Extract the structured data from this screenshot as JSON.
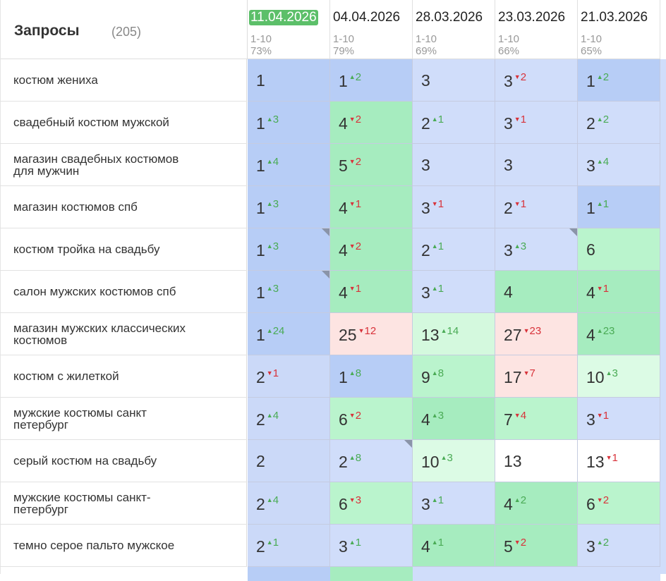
{
  "header": {
    "title": "Запросы",
    "count": "(205)"
  },
  "columns": [
    {
      "date": "11.04.2026",
      "range": "1-10",
      "share": "73%"
    },
    {
      "date": "04.04.2026",
      "range": "1-10",
      "share": "79%"
    },
    {
      "date": "28.03.2026",
      "range": "1-10",
      "share": "69%"
    },
    {
      "date": "23.03.2026",
      "range": "1-10",
      "share": "66%"
    },
    {
      "date": "21.03.2026",
      "range": "1-10",
      "share": "65%"
    }
  ],
  "rows": [
    {
      "query": "костюм жениха",
      "cells": [
        {
          "position": 1,
          "color": "#b7cdf6"
        },
        {
          "position": 1,
          "change": 2,
          "trend": "up",
          "color": "#b7cdf6"
        },
        {
          "position": 3,
          "color": "#d0ddfa"
        },
        {
          "position": 3,
          "change": 2,
          "trend": "down",
          "color": "#d0ddfa"
        },
        {
          "position": 1,
          "change": 2,
          "trend": "up",
          "color": "#b7cdf6"
        }
      ]
    },
    {
      "query": "свадебный костюм мужской",
      "cells": [
        {
          "position": 1,
          "change": 3,
          "trend": "up",
          "color": "#b7cdf6"
        },
        {
          "position": 4,
          "change": 2,
          "trend": "down",
          "color": "#a6ecbf"
        },
        {
          "position": 2,
          "change": 1,
          "trend": "up",
          "color": "#d0ddfa"
        },
        {
          "position": 3,
          "change": 1,
          "trend": "down",
          "color": "#d0ddfa"
        },
        {
          "position": 2,
          "change": 2,
          "trend": "up",
          "color": "#d0ddfa"
        }
      ]
    },
    {
      "query": "магазин свадебных костюмов для мужчин",
      "cells": [
        {
          "position": 1,
          "change": 4,
          "trend": "up",
          "color": "#b7cdf6"
        },
        {
          "position": 5,
          "change": 2,
          "trend": "down",
          "color": "#a6ecbf"
        },
        {
          "position": 3,
          "color": "#d0ddfa"
        },
        {
          "position": 3,
          "color": "#d0ddfa"
        },
        {
          "position": 3,
          "change": 4,
          "trend": "up",
          "color": "#d0ddfa"
        }
      ]
    },
    {
      "query": "магазин костюмов спб",
      "cells": [
        {
          "position": 1,
          "change": 3,
          "trend": "up",
          "color": "#b7cdf6"
        },
        {
          "position": 4,
          "change": 1,
          "trend": "down",
          "color": "#a6ecbf"
        },
        {
          "position": 3,
          "change": 1,
          "trend": "down",
          "color": "#d0ddfa"
        },
        {
          "position": 2,
          "change": 1,
          "trend": "down",
          "color": "#d0ddfa"
        },
        {
          "position": 1,
          "change": 1,
          "trend": "up",
          "color": "#b7cdf6"
        }
      ]
    },
    {
      "query": "костюм тройка на свадьбу",
      "cells": [
        {
          "position": 1,
          "change": 3,
          "trend": "up",
          "color": "#b7cdf6",
          "flag": true
        },
        {
          "position": 4,
          "change": 2,
          "trend": "down",
          "color": "#a6ecbf"
        },
        {
          "position": 2,
          "change": 1,
          "trend": "up",
          "color": "#d0ddfa"
        },
        {
          "position": 3,
          "change": 3,
          "trend": "up",
          "color": "#d0ddfa",
          "flag": true
        },
        {
          "position": 6,
          "color": "#baf4cd"
        }
      ]
    },
    {
      "query": "салон мужских костюмов спб",
      "cells": [
        {
          "position": 1,
          "change": 3,
          "trend": "up",
          "color": "#b7cdf6",
          "flag": true
        },
        {
          "position": 4,
          "change": 1,
          "trend": "down",
          "color": "#a6ecbf"
        },
        {
          "position": 3,
          "change": 1,
          "trend": "up",
          "color": "#d0ddfa"
        },
        {
          "position": 4,
          "color": "#a6ecbf"
        },
        {
          "position": 4,
          "change": 1,
          "trend": "down",
          "color": "#a6ecbf"
        }
      ]
    },
    {
      "query": "магазин мужских классических костюмов",
      "cells": [
        {
          "position": 1,
          "change": 24,
          "trend": "up",
          "color": "#b7cdf6"
        },
        {
          "position": 25,
          "change": 12,
          "trend": "down",
          "color": "#fde4e2"
        },
        {
          "position": 13,
          "change": 14,
          "trend": "up",
          "color": "#d4f9de"
        },
        {
          "position": 27,
          "change": 23,
          "trend": "down",
          "color": "#fde4e2"
        },
        {
          "position": 4,
          "change": 23,
          "trend": "up",
          "color": "#a6ecbf"
        }
      ]
    },
    {
      "query": "костюм с жилеткой",
      "cells": [
        {
          "position": 2,
          "change": 1,
          "trend": "down",
          "color": "#cbd9f8"
        },
        {
          "position": 1,
          "change": 8,
          "trend": "up",
          "color": "#b7cdf6"
        },
        {
          "position": 9,
          "change": 8,
          "trend": "up",
          "color": "#baf4cd"
        },
        {
          "position": 17,
          "change": 7,
          "trend": "down",
          "color": "#fde4e2"
        },
        {
          "position": 10,
          "change": 3,
          "trend": "up",
          "color": "#dcfbe5"
        }
      ]
    },
    {
      "query": "мужские костюмы санкт петербург",
      "cells": [
        {
          "position": 2,
          "change": 4,
          "trend": "up",
          "color": "#cbd9f8"
        },
        {
          "position": 6,
          "change": 2,
          "trend": "down",
          "color": "#baf4cd"
        },
        {
          "position": 4,
          "change": 3,
          "trend": "up",
          "color": "#a6ecbf"
        },
        {
          "position": 7,
          "change": 4,
          "trend": "down",
          "color": "#baf4cd"
        },
        {
          "position": 3,
          "change": 1,
          "trend": "down",
          "color": "#d0ddfa"
        }
      ]
    },
    {
      "query": "серый костюм на свадьбу",
      "cells": [
        {
          "position": 2,
          "color": "#cbd9f8"
        },
        {
          "position": 2,
          "change": 8,
          "trend": "up",
          "color": "#d0ddfa",
          "flag": true
        },
        {
          "position": 10,
          "change": 3,
          "trend": "up",
          "color": "#dcfbe5"
        },
        {
          "position": 13,
          "color": "#ffffff"
        },
        {
          "position": 13,
          "change": 1,
          "trend": "down",
          "color": "#ffffff"
        }
      ]
    },
    {
      "query": "мужские костюмы санкт-петербург",
      "cells": [
        {
          "position": 2,
          "change": 4,
          "trend": "up",
          "color": "#cbd9f8"
        },
        {
          "position": 6,
          "change": 3,
          "trend": "down",
          "color": "#baf4cd"
        },
        {
          "position": 3,
          "change": 1,
          "trend": "up",
          "color": "#d0ddfa"
        },
        {
          "position": 4,
          "change": 2,
          "trend": "up",
          "color": "#a6ecbf"
        },
        {
          "position": 6,
          "change": 2,
          "trend": "down",
          "color": "#baf4cd"
        }
      ]
    },
    {
      "query": "темно серое пальто мужское",
      "cells": [
        {
          "position": 2,
          "change": 1,
          "trend": "up",
          "color": "#cbd9f8"
        },
        {
          "position": 3,
          "change": 1,
          "trend": "up",
          "color": "#d0ddfa"
        },
        {
          "position": 4,
          "change": 1,
          "trend": "up",
          "color": "#a6ecbf"
        },
        {
          "position": 5,
          "change": 2,
          "trend": "down",
          "color": "#a6ecbf"
        },
        {
          "position": 3,
          "change": 2,
          "trend": "up",
          "color": "#d0ddfa"
        }
      ]
    }
  ]
}
